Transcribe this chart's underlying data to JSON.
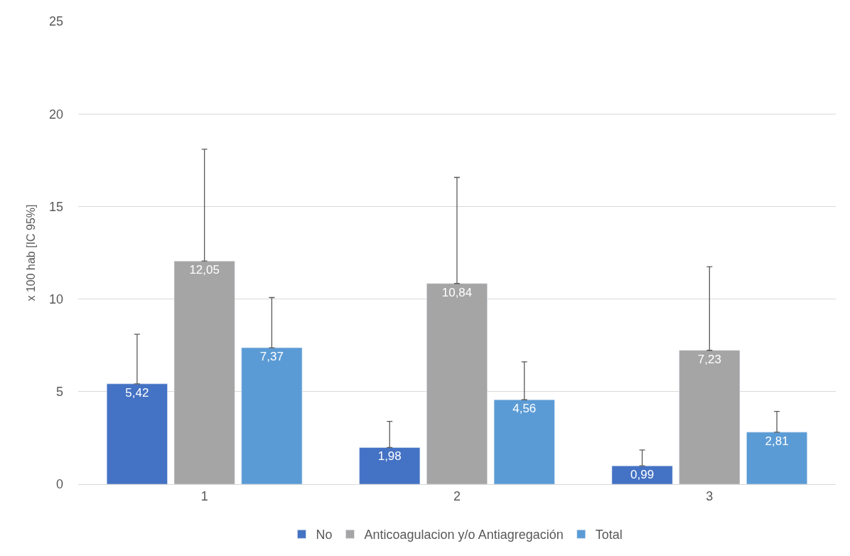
{
  "chart_data": {
    "type": "bar",
    "ylabel": "x 100 hab [IC 95%]",
    "categories": [
      "1",
      "2",
      "3"
    ],
    "series": [
      {
        "name": "No",
        "color": "#4472c4",
        "values": [
          5.42,
          1.98,
          0.99
        ],
        "value_labels": [
          "5,42",
          "1,98",
          "0,99"
        ],
        "errors": [
          [
            5.42,
            8.1
          ],
          [
            1.98,
            3.39
          ],
          [
            0.99,
            1.85
          ]
        ]
      },
      {
        "name": "Anticoagulacion y/o Antiagregación",
        "color": "#a5a5a5",
        "values": [
          12.05,
          10.84,
          7.23
        ],
        "value_labels": [
          "12,05",
          "10,84",
          "7,23"
        ],
        "errors": [
          [
            12.05,
            18.09
          ],
          [
            10.84,
            16.57
          ],
          [
            7.23,
            11.75
          ]
        ]
      },
      {
        "name": "Total",
        "color": "#5b9bd5",
        "values": [
          7.37,
          4.56,
          2.81
        ],
        "value_labels": [
          "7,37",
          "4,56",
          "2,81"
        ],
        "errors": [
          [
            7.37,
            10.08
          ],
          [
            4.56,
            6.61
          ],
          [
            2.81,
            3.93
          ]
        ]
      }
    ],
    "ylim": [
      0,
      25
    ],
    "yticks": [
      0,
      5,
      10,
      15,
      20,
      25
    ],
    "grid": "y",
    "legend": "bottom"
  }
}
